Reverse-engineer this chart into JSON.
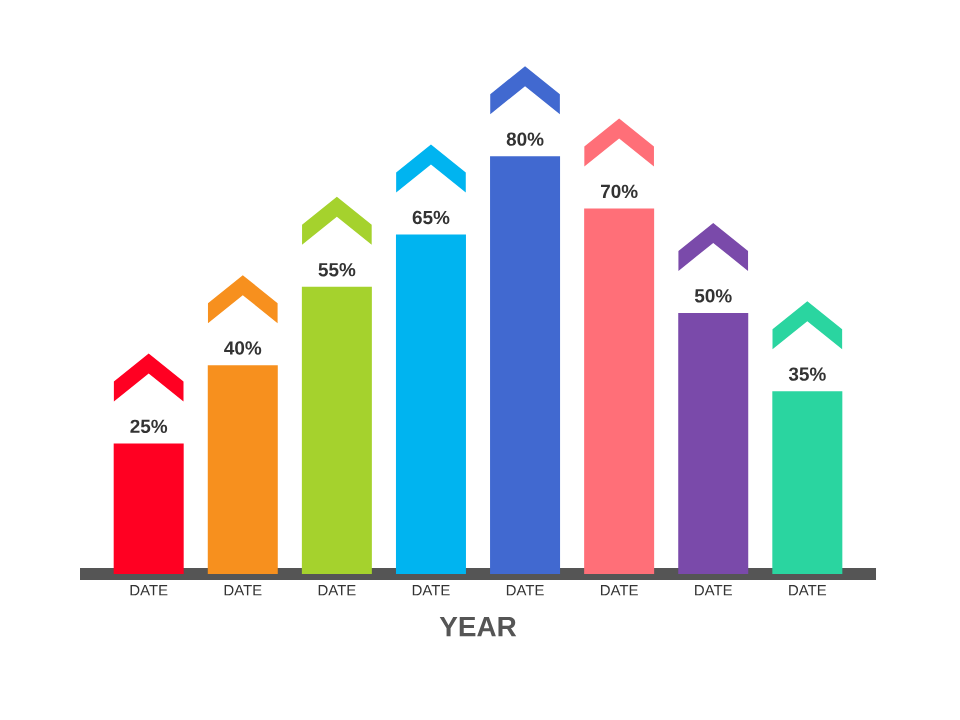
{
  "chart_data": {
    "type": "bar",
    "xlabel": "YEAR",
    "categories": [
      "DATE",
      "DATE",
      "DATE",
      "DATE",
      "DATE",
      "DATE",
      "DATE",
      "DATE"
    ],
    "values": [
      25,
      40,
      55,
      65,
      80,
      70,
      50,
      35
    ],
    "value_labels": [
      "25%",
      "40%",
      "55%",
      "65%",
      "80%",
      "70%",
      "50%",
      "35%"
    ],
    "colors": [
      "#ff0022",
      "#f7901e",
      "#a5d22d",
      "#00b4f0",
      "#4169d0",
      "#ff6f78",
      "#7a4aaa",
      "#2ad5a0"
    ]
  }
}
